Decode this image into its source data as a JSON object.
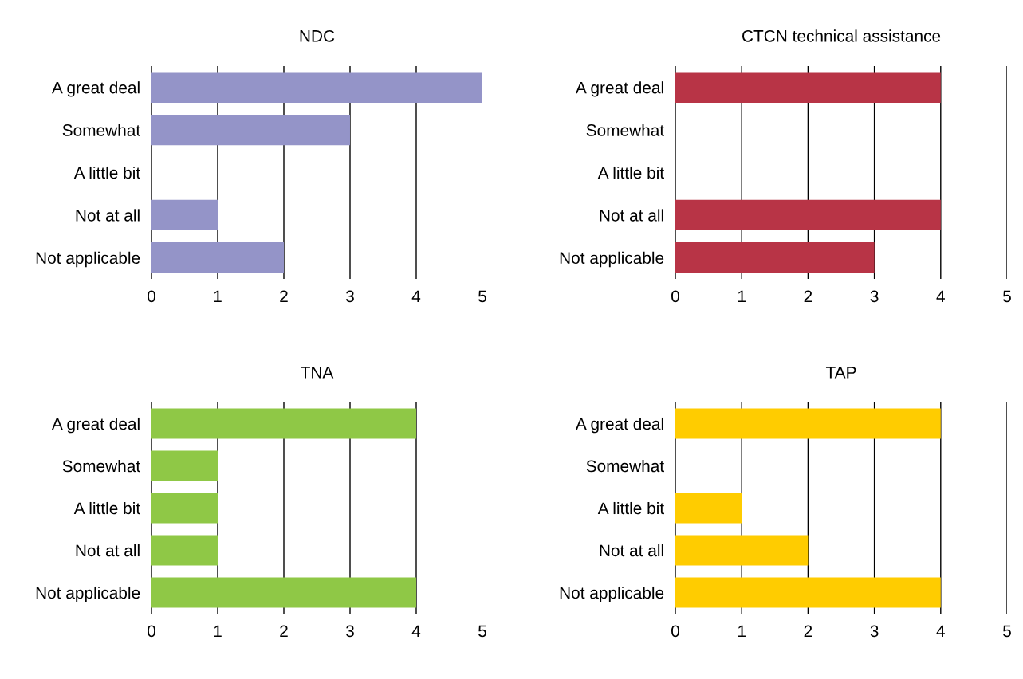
{
  "chart_data": [
    {
      "type": "bar",
      "orientation": "horizontal",
      "title": "NDC",
      "categories": [
        "A great deal",
        "Somewhat",
        "A little bit",
        "Not at all",
        "Not applicable"
      ],
      "values": [
        5,
        3,
        0,
        1,
        2
      ],
      "color": "#9494c8",
      "xlim": [
        0,
        5
      ],
      "xticks": [
        0,
        1,
        2,
        3,
        4,
        5
      ],
      "grid": "x",
      "legend": false
    },
    {
      "type": "bar",
      "orientation": "horizontal",
      "title": "CTCN technical assistance",
      "categories": [
        "A great deal",
        "Somewhat",
        "A little bit",
        "Not at all",
        "Not applicable"
      ],
      "values": [
        4,
        0,
        0,
        4,
        3
      ],
      "color": "#b83446",
      "xlim": [
        0,
        5
      ],
      "xticks": [
        0,
        1,
        2,
        3,
        4,
        5
      ],
      "grid": "x",
      "legend": false
    },
    {
      "type": "bar",
      "orientation": "horizontal",
      "title": "TNA",
      "categories": [
        "A great deal",
        "Somewhat",
        "A little bit",
        "Not at all",
        "Not applicable"
      ],
      "values": [
        4,
        1,
        1,
        1,
        4
      ],
      "color": "#8fc846",
      "xlim": [
        0,
        5
      ],
      "xticks": [
        0,
        1,
        2,
        3,
        4,
        5
      ],
      "grid": "x",
      "legend": false
    },
    {
      "type": "bar",
      "orientation": "horizontal",
      "title": "TAP",
      "categories": [
        "A great deal",
        "Somewhat",
        "A little bit",
        "Not at all",
        "Not applicable"
      ],
      "values": [
        4,
        0,
        1,
        2,
        4
      ],
      "color": "#ffcc00",
      "xlim": [
        0,
        5
      ],
      "xticks": [
        0,
        1,
        2,
        3,
        4,
        5
      ],
      "grid": "x",
      "legend": false
    }
  ]
}
